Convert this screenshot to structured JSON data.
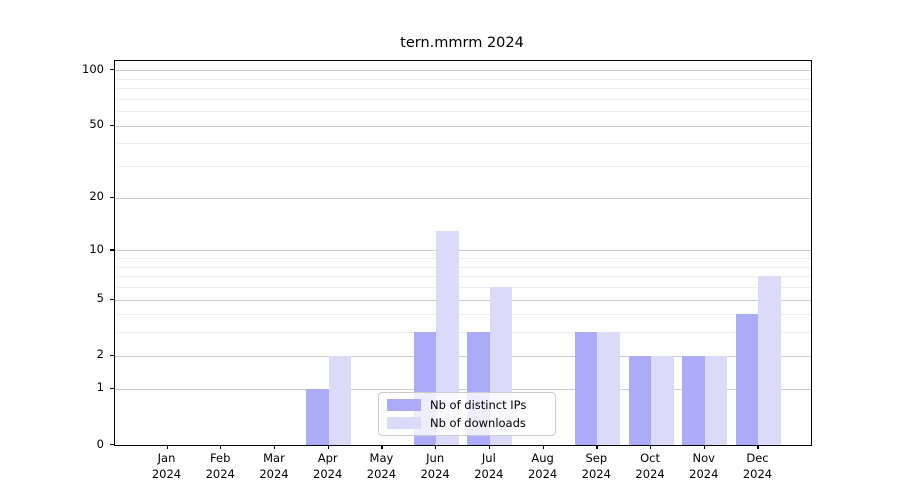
{
  "title": "tern.mmrm 2024",
  "chart_data": {
    "type": "bar",
    "title": "tern.mmrm 2024",
    "year": "2024",
    "months": [
      "Jan",
      "Feb",
      "Mar",
      "Apr",
      "May",
      "Jun",
      "Jul",
      "Aug",
      "Sep",
      "Oct",
      "Nov",
      "Dec"
    ],
    "categories": [
      "Jan 2024",
      "Feb 2024",
      "Mar 2024",
      "Apr 2024",
      "May 2024",
      "Jun 2024",
      "Jul 2024",
      "Aug 2024",
      "Sep 2024",
      "Oct 2024",
      "Nov 2024",
      "Dec 2024"
    ],
    "series": [
      {
        "name": "Nb of distinct IPs",
        "color": "#ababf8",
        "values": [
          0,
          0,
          0,
          1,
          0,
          3,
          3,
          0,
          3,
          2,
          2,
          4
        ]
      },
      {
        "name": "Nb of downloads",
        "color": "#dbdbf9",
        "values": [
          0,
          0,
          0,
          2,
          0,
          13,
          6,
          0,
          3,
          2,
          2,
          7
        ]
      }
    ],
    "yscale": "log1p",
    "yticks": [
      0,
      1,
      2,
      5,
      10,
      20,
      50,
      100
    ],
    "ylim": [
      0,
      113
    ],
    "grid": true,
    "legend_position": "lower center"
  },
  "colors": {
    "bar_ips": "#ababf8",
    "bar_downloads": "#dbdbf9",
    "grid_major": "#cccccc",
    "grid_minor": "#ededed",
    "axis": "#000000",
    "legend_border": "#cccccc",
    "background": "#ffffff"
  }
}
